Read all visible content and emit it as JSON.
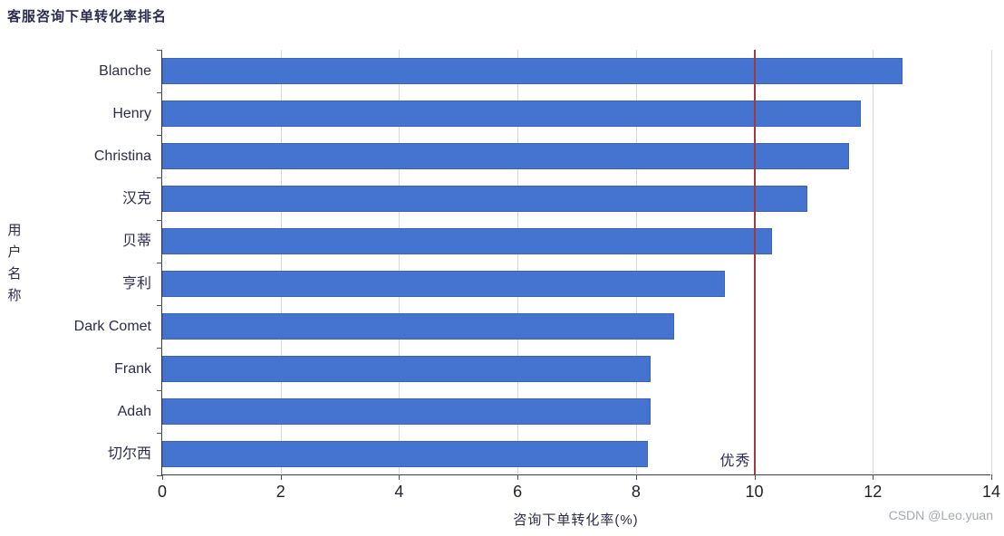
{
  "title": "客服咨询下单转化率排名",
  "watermark": "CSDN @Leo.yuan",
  "colors": {
    "bar": "#4573d0",
    "bar_border": "#3a63bb",
    "alert_line": "#a03a3c",
    "grid": "#d8d8d8",
    "axis": "#3c3c44",
    "text": "#2c2c4e",
    "watermark": "#a4aab1"
  },
  "chart_data": {
    "type": "bar",
    "orientation": "horizontal",
    "title": "客服咨询下单转化率排名",
    "categories": [
      "Blanche",
      "Henry",
      "Christina",
      "汉克",
      "贝蒂",
      "亨利",
      "Dark Comet",
      "Frank",
      "Adah",
      "切尔西"
    ],
    "values": [
      12.5,
      11.8,
      11.6,
      10.9,
      10.3,
      9.5,
      8.65,
      8.25,
      8.25,
      8.2
    ],
    "xlabel": "咨询下单转化率(%)",
    "ylabel": "用户名称",
    "xlim": [
      0,
      14
    ],
    "xticks": [
      0,
      2,
      4,
      6,
      8,
      10,
      12,
      14
    ],
    "grid": true,
    "legend": false,
    "alert_line": {
      "value": 10,
      "label": "优秀"
    }
  }
}
